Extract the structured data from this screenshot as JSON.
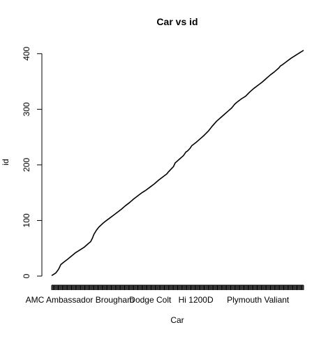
{
  "chart_data": {
    "type": "line",
    "title": "Car vs id",
    "xlabel": "Car",
    "ylabel": "id",
    "x_tick_labels": [
      "AMC Ambassador Brougham",
      "Dodge Colt",
      "Hi 1200D",
      "Plymouth Valiant"
    ],
    "x_tick_label_positions": [
      35,
      120,
      175,
      250
    ],
    "y_ticks": [
      0,
      100,
      200,
      300,
      400
    ],
    "xlim": [
      1,
      305
    ],
    "ylim": [
      0,
      406
    ],
    "n_categories": 305,
    "series": [
      {
        "color": "#000000",
        "x": [
          1,
          3,
          6,
          8,
          10,
          12,
          15,
          20,
          30,
          40,
          45,
          48,
          50,
          52,
          55,
          58,
          62,
          65,
          70,
          75,
          80,
          85,
          90,
          95,
          100,
          105,
          110,
          115,
          120,
          125,
          130,
          135,
          140,
          142,
          145,
          148,
          150,
          155,
          160,
          163,
          165,
          168,
          170,
          175,
          180,
          185,
          190,
          195,
          200,
          205,
          210,
          215,
          218,
          220,
          222,
          225,
          230,
          235,
          240,
          245,
          250,
          255,
          260,
          265,
          270,
          275,
          277,
          279,
          280,
          285,
          290,
          295,
          300,
          305
        ],
        "y": [
          1,
          3,
          6,
          10,
          15,
          22,
          26,
          32,
          45,
          55,
          62,
          66,
          72,
          80,
          88,
          94,
          100,
          104,
          110,
          116,
          122,
          128,
          135,
          141,
          148,
          154,
          160,
          165,
          171,
          177,
          184,
          190,
          196,
          200,
          205,
          210,
          217,
          224,
          231,
          238,
          240,
          245,
          250,
          256,
          263,
          270,
          278,
          288,
          297,
          304,
          311,
          318,
          322,
          326,
          330,
          334,
          340,
          345,
          353,
          360,
          366,
          372,
          379,
          386,
          392,
          399,
          403,
          405,
          406,
          412,
          418,
          423,
          428,
          433
        ]
      }
    ]
  }
}
